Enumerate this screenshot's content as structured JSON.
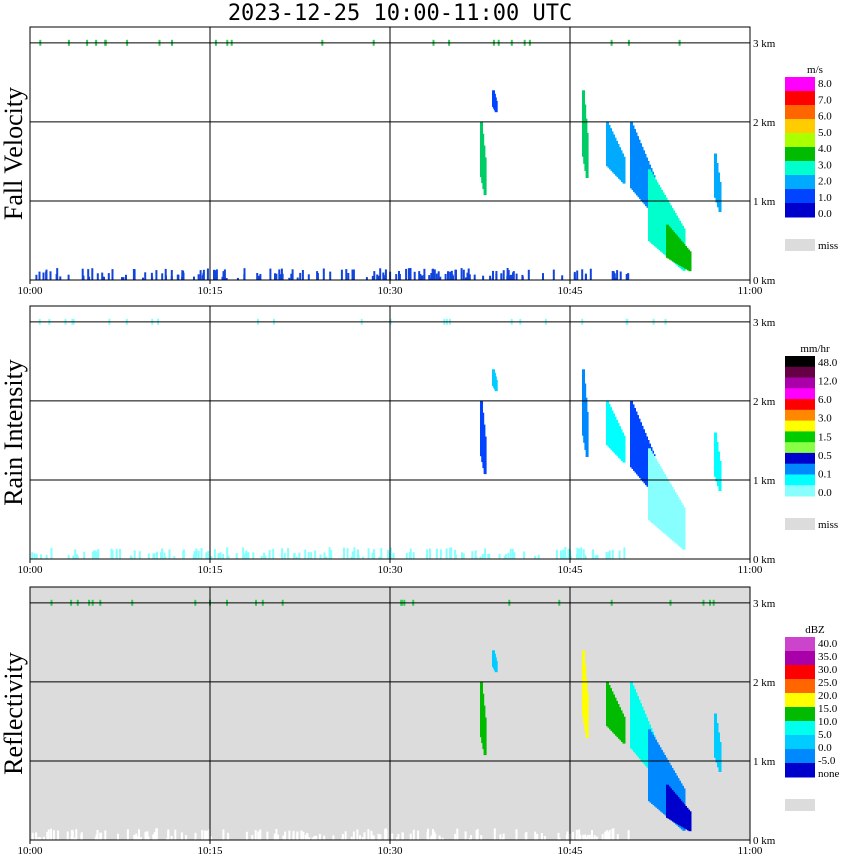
{
  "title": "2023-12-25  10:00-11:00 UTC",
  "colors": {
    "grid": "#000000",
    "missing": "#dcdcdc"
  },
  "chart_data": [
    {
      "type": "heatmap",
      "title": "Fall Velocity",
      "xlabels": [
        "10:00",
        "10:15",
        "10:30",
        "10:45",
        "11:00"
      ],
      "ylabels": [
        "0 km",
        "1 km",
        "2 km",
        "3 km"
      ],
      "xlim": [
        "10:00",
        "11:00"
      ],
      "ylim_km": [
        0,
        3
      ],
      "background": "#ffffff",
      "grid": true,
      "legend": {
        "units": "m/s",
        "labels": [
          "8.0",
          "7.0",
          "6.0",
          "5.0",
          "4.0",
          "3.0",
          "2.0",
          "1.0",
          "0.0"
        ],
        "colors": [
          "#ff00ff",
          "#ff0000",
          "#ff6600",
          "#ffcc00",
          "#aaff00",
          "#00bb00",
          "#00ffcc",
          "#00aaff",
          "#0044ff",
          "#0000cc"
        ],
        "extra_label": "miss",
        "extra_color": "#dcdcdc"
      },
      "echoes": [
        {
          "t0": 37.5,
          "t1": 37.9,
          "h0": 1.0,
          "h1": 2.0,
          "color": "#00cc66"
        },
        {
          "t0": 38.5,
          "t1": 38.8,
          "h0": 2.1,
          "h1": 2.4,
          "color": "#0044ff"
        },
        {
          "t0": 46.0,
          "t1": 46.4,
          "h0": 1.2,
          "h1": 2.4,
          "color": "#00cc66"
        },
        {
          "t0": 48.0,
          "t1": 49.5,
          "h0": 1.2,
          "h1": 2.0,
          "color": "#00aaff"
        },
        {
          "t0": 50.0,
          "t1": 52.0,
          "h0": 0.8,
          "h1": 2.0,
          "color": "#0088ff"
        },
        {
          "t0": 51.5,
          "t1": 54.5,
          "h0": 0.1,
          "h1": 1.4,
          "color": "#00ffcc"
        },
        {
          "t0": 53.0,
          "t1": 55.0,
          "h0": 0.1,
          "h1": 0.7,
          "color": "#00bb00"
        },
        {
          "t0": 57.0,
          "t1": 57.5,
          "h0": 0.8,
          "h1": 1.6,
          "color": "#00aaff"
        }
      ],
      "surface_color": "#1144dd"
    },
    {
      "type": "heatmap",
      "title": "Rain Intensity",
      "xlabels": [
        "10:00",
        "10:15",
        "10:30",
        "10:45",
        "11:00"
      ],
      "ylabels": [
        "0 km",
        "1 km",
        "2 km",
        "3 km"
      ],
      "xlim": [
        "10:00",
        "11:00"
      ],
      "ylim_km": [
        0,
        3
      ],
      "background": "#ffffff",
      "grid": true,
      "legend": {
        "units": "mm/hr",
        "labels": [
          "48.0",
          "12.0",
          "6.0",
          "3.0",
          "1.5",
          "0.5",
          "0.1",
          "0.0"
        ],
        "colors": [
          "#000000",
          "#660044",
          "#aa00aa",
          "#ff00ff",
          "#ff0000",
          "#ff8800",
          "#ffff00",
          "#00cc00",
          "#88ff44",
          "#0000cc",
          "#0088ff",
          "#00ffff",
          "#88ffff"
        ],
        "extra_label": "miss",
        "extra_color": "#dcdcdc"
      },
      "echoes": [
        {
          "t0": 37.5,
          "t1": 37.9,
          "h0": 1.0,
          "h1": 2.0,
          "color": "#0044ff"
        },
        {
          "t0": 38.5,
          "t1": 38.8,
          "h0": 2.1,
          "h1": 2.4,
          "color": "#00ccff"
        },
        {
          "t0": 46.0,
          "t1": 46.4,
          "h0": 1.2,
          "h1": 2.4,
          "color": "#0088ff"
        },
        {
          "t0": 48.0,
          "t1": 49.5,
          "h0": 1.2,
          "h1": 2.0,
          "color": "#00ffff"
        },
        {
          "t0": 50.0,
          "t1": 52.0,
          "h0": 0.8,
          "h1": 2.0,
          "color": "#0044ff"
        },
        {
          "t0": 51.5,
          "t1": 54.5,
          "h0": 0.1,
          "h1": 1.4,
          "color": "#88ffff"
        },
        {
          "t0": 57.0,
          "t1": 57.5,
          "h0": 0.8,
          "h1": 1.6,
          "color": "#00ffff"
        }
      ],
      "surface_color": "#88ffff"
    },
    {
      "type": "heatmap",
      "title": "Reflectivity",
      "xlabels": [
        "10:00",
        "10:15",
        "10:30",
        "10:45",
        "11:00"
      ],
      "ylabels": [
        "0 km",
        "1 km",
        "2 km",
        "3 km"
      ],
      "xlim": [
        "10:00",
        "11:00"
      ],
      "ylim_km": [
        0,
        3
      ],
      "background": "#dcdcdc",
      "grid": true,
      "legend": {
        "units": "dBZ",
        "labels": [
          "40.0",
          "35.0",
          "30.0",
          "25.0",
          "20.0",
          "15.0",
          "10.0",
          "5.0",
          "0.0",
          "-5.0",
          "none"
        ],
        "colors": [
          "#cc44cc",
          "#aa00aa",
          "#ff0000",
          "#ff6600",
          "#ffff00",
          "#00bb00",
          "#00ffee",
          "#00ccff",
          "#0088ff",
          "#0000cc"
        ],
        "extra_label": "",
        "extra_color": "#dcdcdc"
      },
      "echoes": [
        {
          "t0": 37.5,
          "t1": 37.9,
          "h0": 1.0,
          "h1": 2.0,
          "color": "#00bb00"
        },
        {
          "t0": 38.5,
          "t1": 38.8,
          "h0": 2.1,
          "h1": 2.4,
          "color": "#00ccff"
        },
        {
          "t0": 46.0,
          "t1": 46.4,
          "h0": 1.2,
          "h1": 2.4,
          "color": "#ffff00"
        },
        {
          "t0": 48.0,
          "t1": 49.5,
          "h0": 1.2,
          "h1": 2.0,
          "color": "#00bb00"
        },
        {
          "t0": 50.0,
          "t1": 52.0,
          "h0": 0.8,
          "h1": 2.0,
          "color": "#00ffee"
        },
        {
          "t0": 51.5,
          "t1": 54.5,
          "h0": 0.1,
          "h1": 1.4,
          "color": "#0088ff"
        },
        {
          "t0": 53.0,
          "t1": 55.0,
          "h0": 0.1,
          "h1": 0.7,
          "color": "#0000cc"
        },
        {
          "t0": 57.0,
          "t1": 57.5,
          "h0": 0.8,
          "h1": 1.6,
          "color": "#00ccff"
        }
      ],
      "surface_color": "#ffffff"
    }
  ]
}
